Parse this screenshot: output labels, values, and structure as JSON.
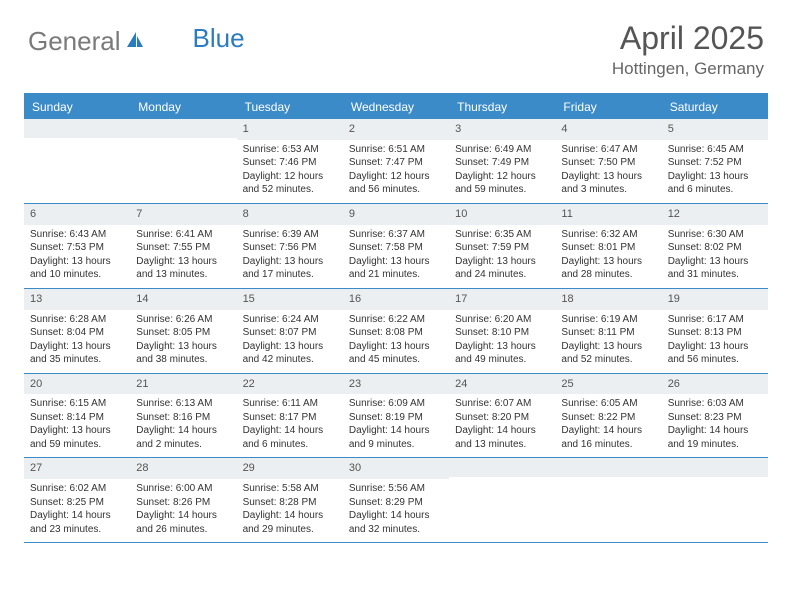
{
  "logo": {
    "part1": "General",
    "part2": "Blue"
  },
  "header": {
    "title": "April 2025",
    "location": "Hottingen, Germany"
  },
  "colors": {
    "accent": "#3b8bc9",
    "daynum_bg": "#eceff1",
    "text": "#333333",
    "header_text": "#555555",
    "logo_gray": "#7a7a7a",
    "logo_blue": "#2b7bbf"
  },
  "weekdays": [
    "Sunday",
    "Monday",
    "Tuesday",
    "Wednesday",
    "Thursday",
    "Friday",
    "Saturday"
  ],
  "layout": {
    "first_weekday_index": 2,
    "days_in_month": 30
  },
  "days": {
    "1": {
      "sunrise": "6:53 AM",
      "sunset": "7:46 PM",
      "daylight": "12 hours and 52 minutes."
    },
    "2": {
      "sunrise": "6:51 AM",
      "sunset": "7:47 PM",
      "daylight": "12 hours and 56 minutes."
    },
    "3": {
      "sunrise": "6:49 AM",
      "sunset": "7:49 PM",
      "daylight": "12 hours and 59 minutes."
    },
    "4": {
      "sunrise": "6:47 AM",
      "sunset": "7:50 PM",
      "daylight": "13 hours and 3 minutes."
    },
    "5": {
      "sunrise": "6:45 AM",
      "sunset": "7:52 PM",
      "daylight": "13 hours and 6 minutes."
    },
    "6": {
      "sunrise": "6:43 AM",
      "sunset": "7:53 PM",
      "daylight": "13 hours and 10 minutes."
    },
    "7": {
      "sunrise": "6:41 AM",
      "sunset": "7:55 PM",
      "daylight": "13 hours and 13 minutes."
    },
    "8": {
      "sunrise": "6:39 AM",
      "sunset": "7:56 PM",
      "daylight": "13 hours and 17 minutes."
    },
    "9": {
      "sunrise": "6:37 AM",
      "sunset": "7:58 PM",
      "daylight": "13 hours and 21 minutes."
    },
    "10": {
      "sunrise": "6:35 AM",
      "sunset": "7:59 PM",
      "daylight": "13 hours and 24 minutes."
    },
    "11": {
      "sunrise": "6:32 AM",
      "sunset": "8:01 PM",
      "daylight": "13 hours and 28 minutes."
    },
    "12": {
      "sunrise": "6:30 AM",
      "sunset": "8:02 PM",
      "daylight": "13 hours and 31 minutes."
    },
    "13": {
      "sunrise": "6:28 AM",
      "sunset": "8:04 PM",
      "daylight": "13 hours and 35 minutes."
    },
    "14": {
      "sunrise": "6:26 AM",
      "sunset": "8:05 PM",
      "daylight": "13 hours and 38 minutes."
    },
    "15": {
      "sunrise": "6:24 AM",
      "sunset": "8:07 PM",
      "daylight": "13 hours and 42 minutes."
    },
    "16": {
      "sunrise": "6:22 AM",
      "sunset": "8:08 PM",
      "daylight": "13 hours and 45 minutes."
    },
    "17": {
      "sunrise": "6:20 AM",
      "sunset": "8:10 PM",
      "daylight": "13 hours and 49 minutes."
    },
    "18": {
      "sunrise": "6:19 AM",
      "sunset": "8:11 PM",
      "daylight": "13 hours and 52 minutes."
    },
    "19": {
      "sunrise": "6:17 AM",
      "sunset": "8:13 PM",
      "daylight": "13 hours and 56 minutes."
    },
    "20": {
      "sunrise": "6:15 AM",
      "sunset": "8:14 PM",
      "daylight": "13 hours and 59 minutes."
    },
    "21": {
      "sunrise": "6:13 AM",
      "sunset": "8:16 PM",
      "daylight": "14 hours and 2 minutes."
    },
    "22": {
      "sunrise": "6:11 AM",
      "sunset": "8:17 PM",
      "daylight": "14 hours and 6 minutes."
    },
    "23": {
      "sunrise": "6:09 AM",
      "sunset": "8:19 PM",
      "daylight": "14 hours and 9 minutes."
    },
    "24": {
      "sunrise": "6:07 AM",
      "sunset": "8:20 PM",
      "daylight": "14 hours and 13 minutes."
    },
    "25": {
      "sunrise": "6:05 AM",
      "sunset": "8:22 PM",
      "daylight": "14 hours and 16 minutes."
    },
    "26": {
      "sunrise": "6:03 AM",
      "sunset": "8:23 PM",
      "daylight": "14 hours and 19 minutes."
    },
    "27": {
      "sunrise": "6:02 AM",
      "sunset": "8:25 PM",
      "daylight": "14 hours and 23 minutes."
    },
    "28": {
      "sunrise": "6:00 AM",
      "sunset": "8:26 PM",
      "daylight": "14 hours and 26 minutes."
    },
    "29": {
      "sunrise": "5:58 AM",
      "sunset": "8:28 PM",
      "daylight": "14 hours and 29 minutes."
    },
    "30": {
      "sunrise": "5:56 AM",
      "sunset": "8:29 PM",
      "daylight": "14 hours and 32 minutes."
    }
  },
  "labels": {
    "sunrise": "Sunrise: ",
    "sunset": "Sunset: ",
    "daylight": "Daylight: "
  }
}
